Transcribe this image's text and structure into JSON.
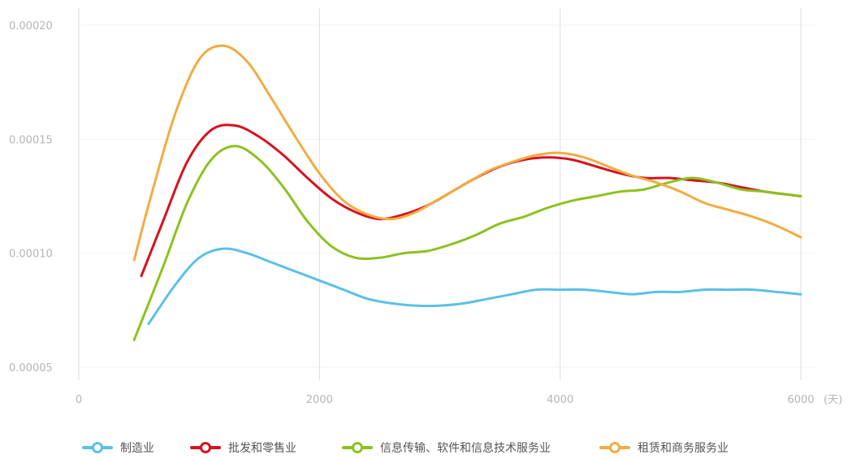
{
  "chart_data": {
    "type": "line",
    "xlabel": "(天)",
    "ylabel": "",
    "title": "",
    "xlim": [
      0,
      6000
    ],
    "ylim": [
      5e-05,
      0.0002
    ],
    "x_ticks": [
      {
        "value": 0,
        "label": "0"
      },
      {
        "value": 2000,
        "label": "2000"
      },
      {
        "value": 4000,
        "label": "4000"
      },
      {
        "value": 6000,
        "label": "6000"
      }
    ],
    "y_ticks": [
      {
        "value": 5e-05,
        "label": "0.00005"
      },
      {
        "value": 0.0001,
        "label": "0.00010"
      },
      {
        "value": 0.00015,
        "label": "0.00015"
      },
      {
        "value": 0.0002,
        "label": "0.00020"
      }
    ],
    "grid": {
      "vertical": true,
      "horizontal": true
    },
    "legend_position": "bottom",
    "series": [
      {
        "name": "制造业",
        "color": "#5bc0e8",
        "x": [
          580,
          800,
          1000,
          1200,
          1400,
          1600,
          1800,
          2000,
          2200,
          2400,
          2600,
          2800,
          3000,
          3200,
          3400,
          3600,
          3800,
          4000,
          4200,
          4400,
          4600,
          4800,
          5000,
          5200,
          5400,
          5600,
          5800,
          6000
        ],
        "y": [
          6.9e-05,
          8.6e-05,
          9.8e-05,
          0.000102,
          0.0001,
          9.6e-05,
          9.2e-05,
          8.8e-05,
          8.4e-05,
          8e-05,
          7.8e-05,
          7.7e-05,
          7.7e-05,
          7.8e-05,
          8e-05,
          8.2e-05,
          8.4e-05,
          8.4e-05,
          8.4e-05,
          8.3e-05,
          8.2e-05,
          8.3e-05,
          8.3e-05,
          8.4e-05,
          8.4e-05,
          8.4e-05,
          8.3e-05,
          8.2e-05
        ]
      },
      {
        "name": "批发和零售业",
        "color": "#d7111f",
        "x": [
          520,
          700,
          900,
          1100,
          1300,
          1500,
          1700,
          1900,
          2100,
          2300,
          2500,
          2700,
          2900,
          3100,
          3300,
          3500,
          3700,
          3900,
          4100,
          4300,
          4500,
          4700,
          4900,
          5100,
          5300,
          5500,
          5700,
          6000
        ],
        "y": [
          9e-05,
          0.000114,
          0.00014,
          0.000154,
          0.000156,
          0.000151,
          0.000143,
          0.000133,
          0.000124,
          0.000118,
          0.000115,
          0.000117,
          0.000121,
          0.000127,
          0.000133,
          0.000138,
          0.000141,
          0.000142,
          0.000141,
          0.000138,
          0.000135,
          0.000133,
          0.000133,
          0.000132,
          0.000131,
          0.000129,
          0.000127,
          0.000125
        ]
      },
      {
        "name": "信息传输、软件和信息技术服务业",
        "color": "#8cc21f",
        "x": [
          460,
          700,
          900,
          1100,
          1300,
          1500,
          1700,
          1900,
          2100,
          2300,
          2500,
          2700,
          2900,
          3100,
          3300,
          3500,
          3700,
          3900,
          4100,
          4300,
          4500,
          4700,
          4900,
          5100,
          5300,
          5500,
          5700,
          6000
        ],
        "y": [
          6.2e-05,
          9.4e-05,
          0.000122,
          0.000141,
          0.000147,
          0.000141,
          0.000129,
          0.000114,
          0.000103,
          9.8e-05,
          9.8e-05,
          0.0001,
          0.000101,
          0.000104,
          0.000108,
          0.000113,
          0.000116,
          0.00012,
          0.000123,
          0.000125,
          0.000127,
          0.000128,
          0.000131,
          0.000133,
          0.000131,
          0.000128,
          0.000127,
          0.000125
        ]
      },
      {
        "name": "租赁和商务服务业",
        "color": "#f2ac41",
        "x": [
          460,
          600,
          800,
          1000,
          1200,
          1400,
          1600,
          1800,
          2000,
          2200,
          2400,
          2600,
          2800,
          3000,
          3200,
          3400,
          3600,
          3800,
          4000,
          4200,
          4400,
          4600,
          4800,
          5000,
          5200,
          5400,
          5600,
          5800,
          6000
        ],
        "y": [
          9.7e-05,
          0.000125,
          0.000161,
          0.000185,
          0.000191,
          0.000184,
          0.000168,
          0.000151,
          0.000135,
          0.000123,
          0.000117,
          0.000115,
          0.000118,
          0.000124,
          0.00013,
          0.000136,
          0.00014,
          0.000143,
          0.000144,
          0.000142,
          0.000138,
          0.000134,
          0.000131,
          0.000127,
          0.000122,
          0.000119,
          0.000116,
          0.000112,
          0.000107
        ]
      }
    ]
  }
}
